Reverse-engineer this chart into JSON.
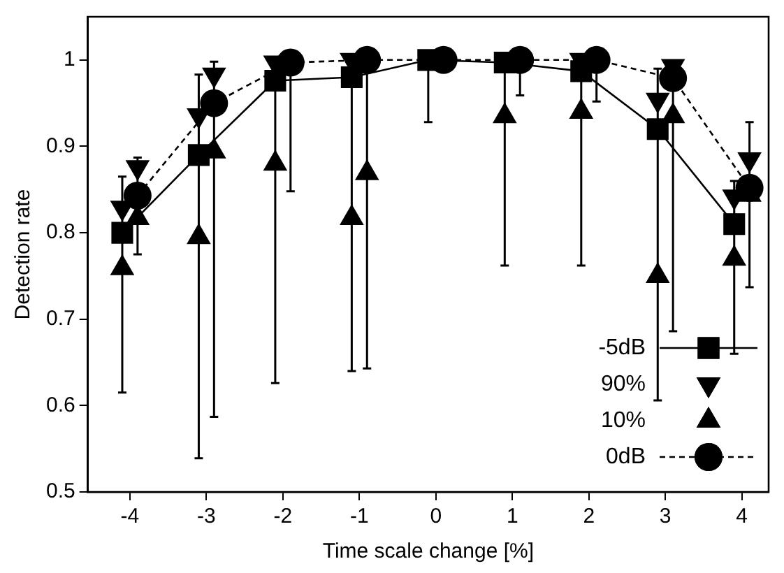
{
  "chart_data": {
    "type": "line",
    "xlabel": "Time scale change [%]",
    "ylabel": "Detection rate",
    "xlim": [
      -4.55,
      4.35
    ],
    "ylim": [
      0.5,
      1.05
    ],
    "xticks": [
      -4,
      -3,
      -2,
      -1,
      0,
      1,
      2,
      3,
      4
    ],
    "yticks": [
      0.5,
      0.6,
      0.7,
      0.8,
      0.9,
      1
    ],
    "grid": false,
    "legend": "bottom right",
    "series": [
      {
        "name": "-5dB",
        "color": "#000000",
        "marker": "square",
        "line_style": "solid",
        "x": [
          -4.1,
          -3.1,
          -2.1,
          -1.1,
          -0.1,
          0.9,
          1.9,
          2.9,
          3.9
        ],
        "values": [
          0.8,
          0.89,
          0.976,
          0.98,
          1.0,
          0.997,
          0.987,
          0.92,
          0.81
        ],
        "errors": [
          [
            0.615,
            0.865
          ],
          [
            0.539,
            0.983
          ],
          [
            0.626,
            0.976
          ],
          [
            0.64,
            0.98
          ],
          [
            0.928,
            1.0
          ],
          [
            0.762,
            0.997
          ],
          [
            0.762,
            0.987
          ],
          [
            0.606,
            0.99
          ],
          [
            0.66,
            0.86
          ]
        ]
      },
      {
        "name": "90%",
        "type": "scatter",
        "color": "#000000",
        "marker": "triangle-down",
        "x": [
          -4.1,
          -3.9,
          -3.1,
          -2.9,
          -2.1,
          -1.9,
          -1.1,
          -0.9,
          -0.1,
          0.1,
          0.9,
          1.1,
          1.9,
          2.1,
          2.9,
          3.1,
          3.9,
          4.1
        ],
        "values": [
          0.829,
          0.876,
          0.936,
          0.983,
          0.997,
          null,
          1.0,
          null,
          null,
          null,
          null,
          null,
          1.0,
          null,
          0.954,
          0.993,
          0.842,
          0.885
        ]
      },
      {
        "name": "10%",
        "type": "scatter",
        "color": "#000000",
        "marker": "triangle",
        "x": [
          -4.1,
          -3.9,
          -3.1,
          -2.9,
          -2.1,
          -1.9,
          -1.1,
          -0.9,
          -0.1,
          0.1,
          0.9,
          1.1,
          1.9,
          2.1,
          2.9,
          3.1,
          3.9,
          4.1
        ],
        "values": [
          0.759,
          0.817,
          0.795,
          0.894,
          0.88,
          null,
          0.817,
          0.869,
          null,
          null,
          0.935,
          null,
          0.94,
          null,
          0.75,
          0.935,
          0.77,
          0.844
        ]
      },
      {
        "name": "0dB",
        "color": "#000000",
        "marker": "circle",
        "line_style": "dashed",
        "x": [
          -3.9,
          -2.9,
          -1.9,
          -0.9,
          0.1,
          1.1,
          2.1,
          3.1,
          4.1
        ],
        "values": [
          0.843,
          0.95,
          0.997,
          1.0,
          1.0,
          1.0,
          1.0,
          0.979,
          0.852
        ],
        "errors": [
          [
            0.775,
            0.887
          ],
          [
            0.587,
            0.998
          ],
          [
            0.848,
            0.997
          ],
          [
            0.643,
            1.0
          ],
          null,
          [
            0.959,
            1.0
          ],
          [
            0.952,
            1.0
          ],
          [
            0.686,
            0.979
          ],
          [
            0.737,
            0.928
          ]
        ]
      }
    ]
  }
}
